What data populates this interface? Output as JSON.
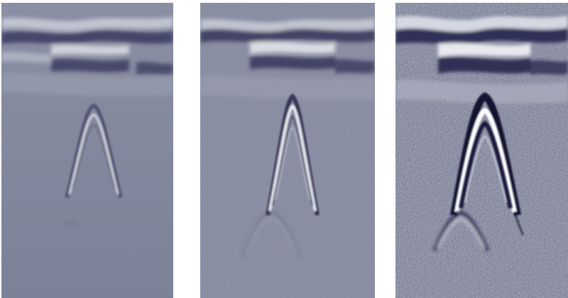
{
  "panels": [
    {
      "id": "panel-1",
      "noise_level": 0.05,
      "hyperbola_strength": 0.55,
      "secondary_strength": 0.05
    },
    {
      "id": "panel-2",
      "noise_level": 0.35,
      "hyperbola_strength": 0.8,
      "secondary_strength": 0.3
    },
    {
      "id": "panel-3",
      "noise_level": 0.75,
      "hyperbola_strength": 1.0,
      "secondary_strength": 0.55
    }
  ],
  "colors": {
    "background": "#7b8197",
    "dark_band": "#2f2f55",
    "light_band": "#e6e8ee",
    "page": "#ffffff"
  }
}
